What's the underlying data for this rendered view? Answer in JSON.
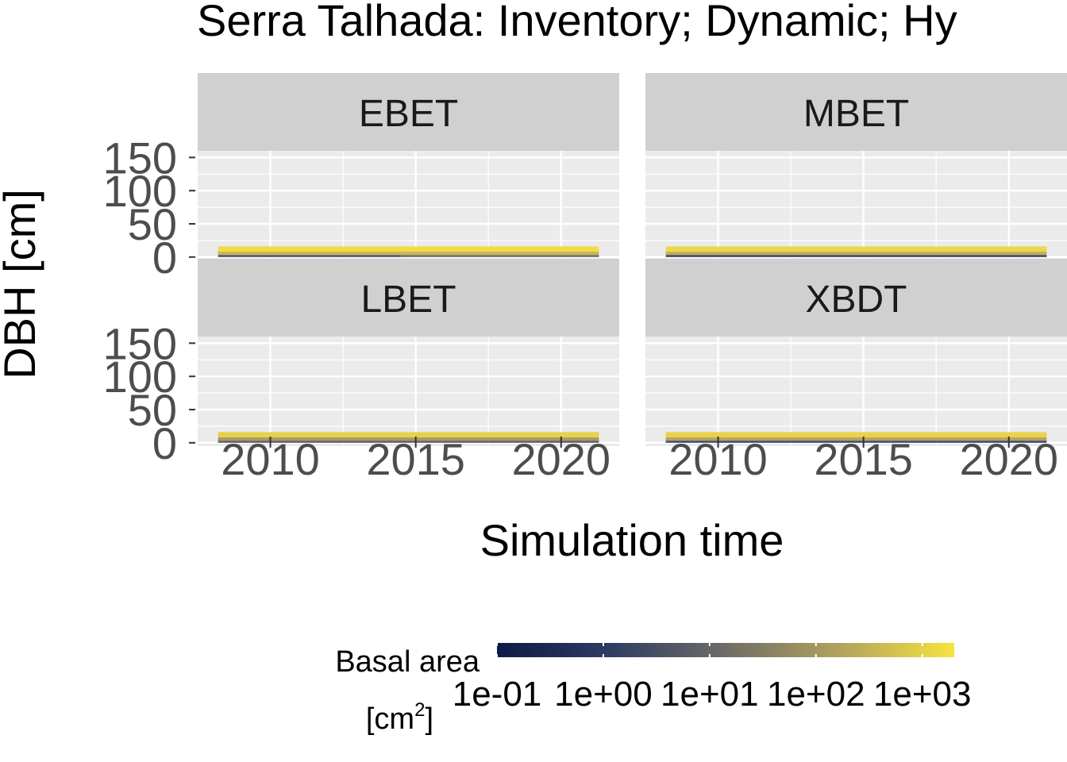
{
  "chart_data": {
    "type": "heatmap",
    "title": "Serra Talhada: Inventory; Dynamic; Hy",
    "xlabel": "Simulation time",
    "ylabel": "DBH [cm]",
    "xlim": [
      2007.5,
      2022
    ],
    "ylim": [
      -5,
      160
    ],
    "x_ticks": [
      2010,
      2015,
      2020
    ],
    "x_tick_labels": [
      "2010",
      "2015",
      "2020"
    ],
    "y_ticks": [
      0,
      50,
      100,
      150
    ],
    "y_tick_labels": [
      "0",
      "50",
      "100",
      "150"
    ],
    "grid": true,
    "facets": [
      {
        "label": "EBET",
        "row": 0,
        "col": 0,
        "tiles": [
          {
            "x0": 2008.2,
            "x1": 2021.3,
            "y0": 8,
            "y1": 16,
            "color": "#f0dc44"
          },
          {
            "x0": 2008.2,
            "x1": 2021.3,
            "y0": 3,
            "y1": 8,
            "color": "#c9b558"
          },
          {
            "x0": 2008.2,
            "x1": 2014.5,
            "y0": 0,
            "y1": 3,
            "color": "#4b5068"
          },
          {
            "x0": 2014.5,
            "x1": 2021.3,
            "y0": 0,
            "y1": 3,
            "color": "#6f6c64"
          }
        ]
      },
      {
        "label": "MBET",
        "row": 0,
        "col": 1,
        "tiles": [
          {
            "x0": 2008.2,
            "x1": 2021.3,
            "y0": 8,
            "y1": 16,
            "color": "#eed748"
          },
          {
            "x0": 2008.2,
            "x1": 2021.3,
            "y0": 3,
            "y1": 8,
            "color": "#bfae5c"
          },
          {
            "x0": 2008.2,
            "x1": 2021.3,
            "y0": 0,
            "y1": 3,
            "color": "#3a4460"
          }
        ]
      },
      {
        "label": "LBET",
        "row": 1,
        "col": 0,
        "tiles": [
          {
            "x0": 2008.2,
            "x1": 2021.3,
            "y0": 8,
            "y1": 16,
            "color": "#e7d14a"
          },
          {
            "x0": 2008.2,
            "x1": 2021.3,
            "y0": 3,
            "y1": 8,
            "color": "#a9995e"
          },
          {
            "x0": 2008.2,
            "x1": 2021.3,
            "y0": 0,
            "y1": 3,
            "color": "#5d5e66"
          }
        ]
      },
      {
        "label": "XBDT",
        "row": 1,
        "col": 1,
        "tiles": [
          {
            "x0": 2008.2,
            "x1": 2021.3,
            "y0": 8,
            "y1": 16,
            "color": "#e8d24a"
          },
          {
            "x0": 2008.2,
            "x1": 2021.3,
            "y0": 3,
            "y1": 8,
            "color": "#b4a45c"
          },
          {
            "x0": 2008.2,
            "x1": 2021.3,
            "y0": 0,
            "y1": 3,
            "color": "#40476a"
          }
        ]
      }
    ],
    "legend": {
      "title_line1": "Basal area",
      "title_line2": "[cm",
      "title_sup": "2",
      "title_close": "]",
      "position": "bottom",
      "scale": "log10",
      "breaks": [
        0.1,
        1,
        10,
        100,
        1000
      ],
      "labels": [
        "1e-01",
        "1e+00",
        "1e+01",
        "1e+02",
        "1e+03"
      ],
      "range": [
        0.1,
        2000
      ],
      "gradient_colors": [
        "#0c1a45",
        "#2f3d63",
        "#6f6c67",
        "#b1a35e",
        "#f7e33e"
      ]
    },
    "colors": {
      "panel_bg": "#ebebeb",
      "grid_major": "#ffffff",
      "strip_bg": "#d0d0d0",
      "strip_text": "#1a1a1a",
      "tick_text": "#4d4d4d",
      "axis_title": "#000000"
    }
  }
}
